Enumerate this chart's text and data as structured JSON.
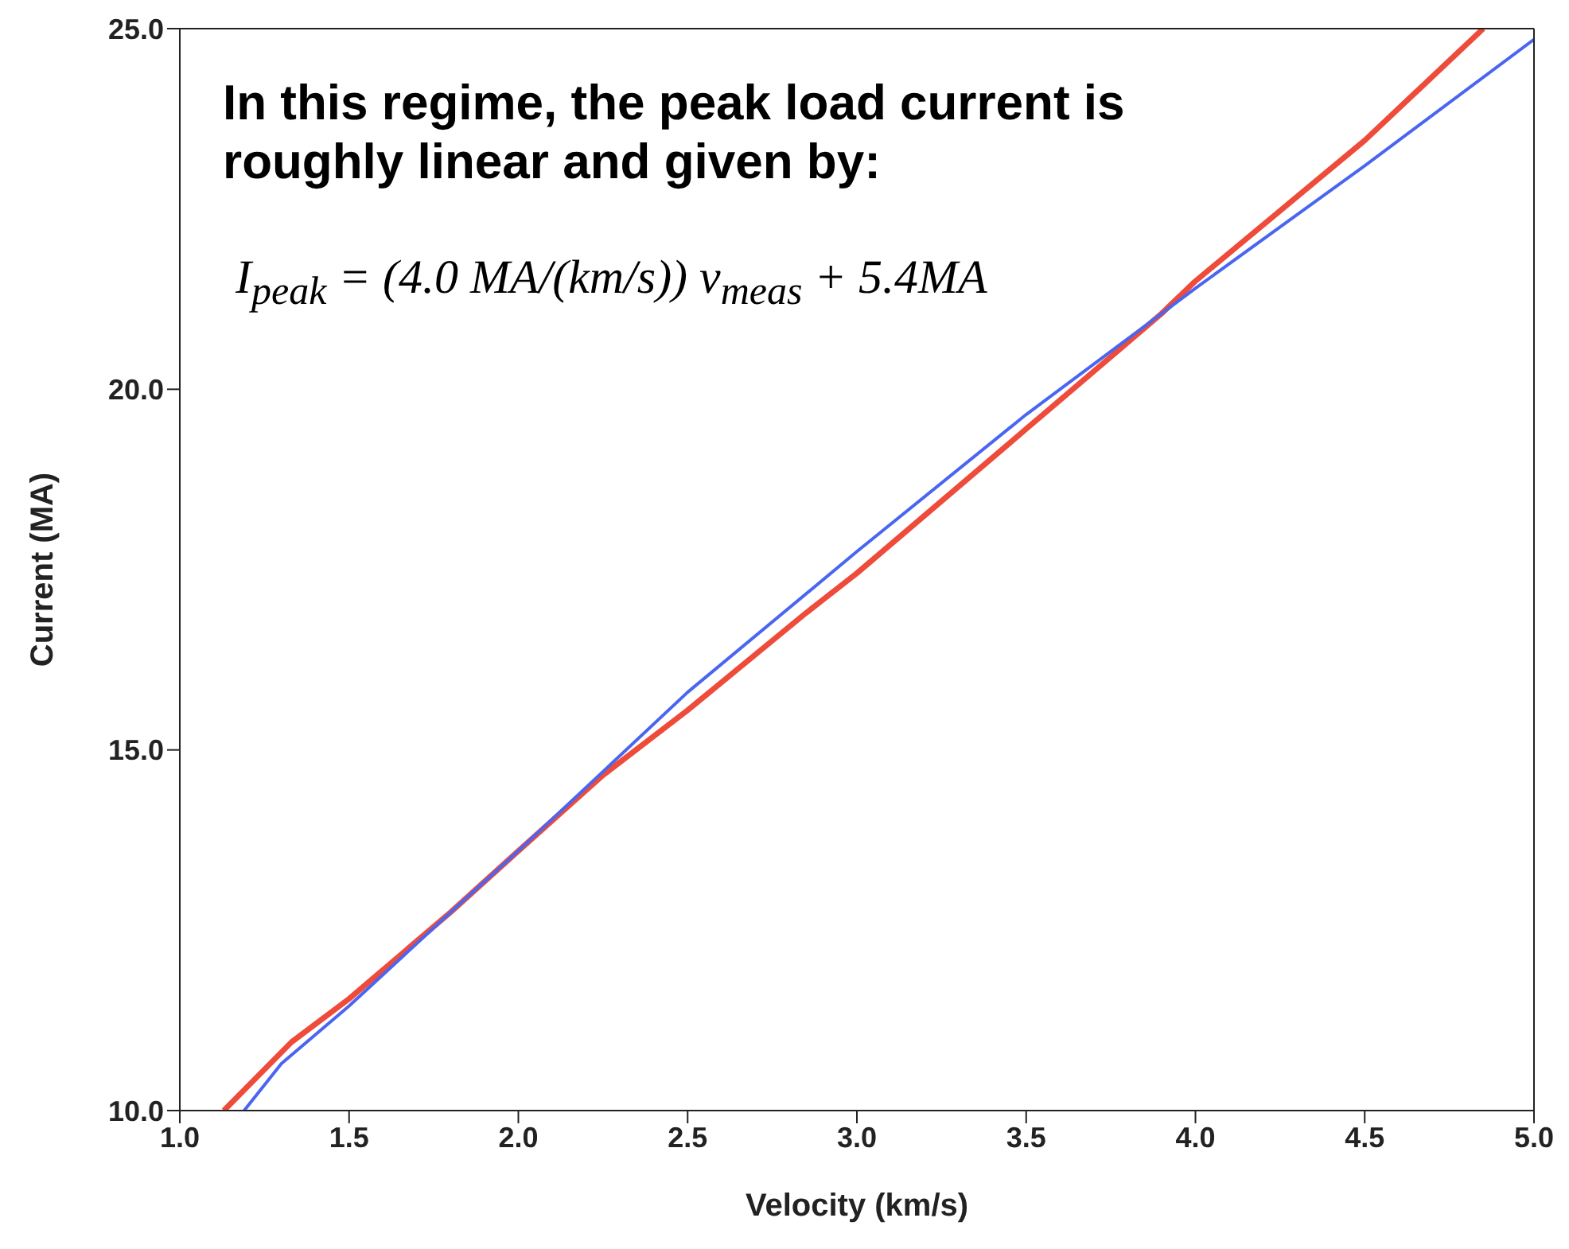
{
  "chart_data": {
    "type": "line",
    "xlabel": "Velocity (km/s)",
    "ylabel": "Current (MA)",
    "annotations": [
      "In this regime, the peak load current is roughly linear and given by:",
      "I$_{peak}$ = (4.0 MA/(km/s)) v$_{meas}$ + 5.4MA"
    ],
    "xlim": [
      1,
      5
    ],
    "xticks": [
      {
        "value": 1,
        "label": "1.0"
      },
      {
        "value": 1.5,
        "label": "1.5"
      },
      {
        "value": 2,
        "label": "2.0"
      },
      {
        "value": 2.5,
        "label": "2.5"
      },
      {
        "value": 3,
        "label": "3.0"
      },
      {
        "value": 3.5,
        "label": "3.5"
      },
      {
        "value": 4,
        "label": "4.0"
      },
      {
        "value": 4.5,
        "label": "4.5"
      },
      {
        "value": 5,
        "label": "5.0"
      }
    ],
    "ylim": [
      10,
      25
    ],
    "yticks": [
      {
        "value": 10,
        "label": "10.0"
      },
      {
        "value": 15,
        "label": "15.0"
      },
      {
        "value": 20,
        "label": "20.0"
      },
      {
        "value": 25,
        "label": "25.0"
      }
    ],
    "marker": "none",
    "line_style": "solid",
    "series": [
      {
        "color": "#ee4b3a",
        "x": [
          1.13,
          1.33,
          1.5,
          1.8,
          2.0,
          2.25,
          2.5,
          2.85,
          3.0,
          3.5,
          3.9,
          4.0,
          4.5,
          4.85
        ],
        "values": [
          10.0,
          10.95,
          11.55,
          12.75,
          13.6,
          14.65,
          15.55,
          16.9,
          17.45,
          19.45,
          21.05,
          21.5,
          23.45,
          25.0
        ]
      },
      {
        "color": "#4a66f0",
        "x": [
          1.19,
          1.3,
          1.5,
          1.8,
          2.0,
          2.25,
          2.5,
          3.0,
          3.5,
          3.9,
          4.0,
          4.5,
          5.0
        ],
        "values": [
          10.0,
          10.65,
          11.45,
          12.75,
          13.6,
          14.7,
          15.8,
          17.75,
          19.65,
          21.05,
          21.4,
          23.1,
          24.85
        ]
      }
    ]
  }
}
